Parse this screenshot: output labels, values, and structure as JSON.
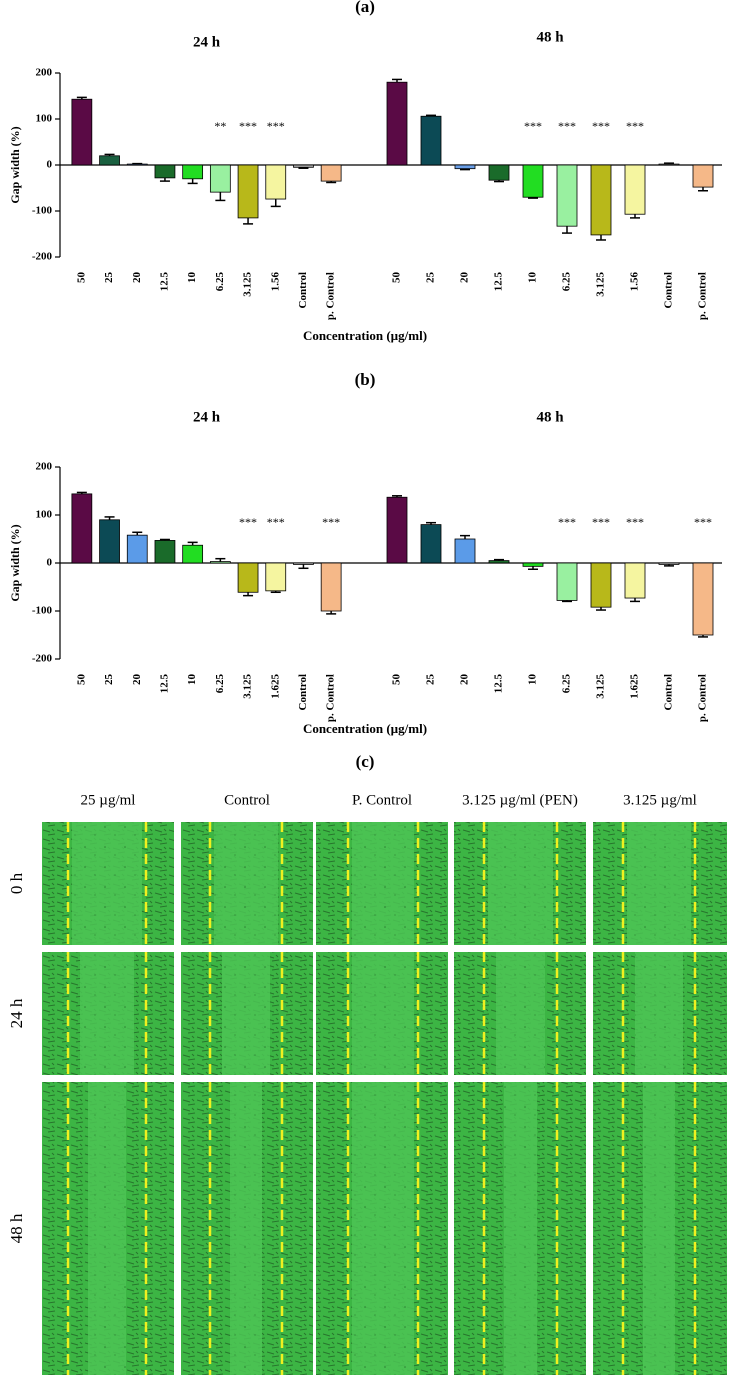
{
  "chart_data": [
    {
      "type": "bar",
      "title": "(a)",
      "ylabel": "Gap width (%)",
      "xlabel": "Concentration (µg/ml)",
      "ylim": [
        -200,
        200
      ],
      "yticks": [
        -200,
        -100,
        0,
        100,
        200
      ],
      "groups": [
        {
          "name": "24 h",
          "categories": [
            "50",
            "25",
            "20",
            "12.5",
            "10",
            "6.25",
            "3.125",
            "1.56",
            "Control",
            "p. Control"
          ],
          "values": [
            143,
            20,
            2,
            -28,
            -30,
            -59,
            -115,
            -74,
            -5,
            -35
          ],
          "errors": [
            4,
            3,
            1,
            7,
            10,
            18,
            13,
            16,
            2,
            3
          ],
          "colors": [
            "#5a0a45",
            "#1a6040",
            "#6a8fd8",
            "#1a6b2a",
            "#22dd22",
            "#99f0a0",
            "#b8b81a",
            "#f5f5a0",
            "#aaaaaa",
            "#f5b888"
          ],
          "annotations": [
            null,
            null,
            null,
            null,
            null,
            "**",
            "***",
            "***",
            null,
            null
          ]
        },
        {
          "name": "48 h",
          "categories": [
            "50",
            "25",
            "20",
            "12.5",
            "10",
            "6.25",
            "3.125",
            "1.56",
            "Control",
            "p. Control"
          ],
          "values": [
            180,
            106,
            -8,
            -33,
            -70,
            -133,
            -152,
            -107,
            2,
            -48
          ],
          "errors": [
            6,
            2,
            2,
            3,
            2,
            15,
            11,
            8,
            2,
            8
          ],
          "colors": [
            "#5a0a45",
            "#0c4a55",
            "#6a9fe8",
            "#1a6b2a",
            "#22dd22",
            "#99f0a0",
            "#b8b81a",
            "#f5f5a0",
            "#aaaaaa",
            "#f5b888"
          ],
          "annotations": [
            null,
            null,
            null,
            null,
            "***",
            "***",
            "***",
            "***",
            null,
            null
          ]
        }
      ]
    },
    {
      "type": "bar",
      "title": "(b)",
      "ylabel": "Gap width (%)",
      "xlabel": "Concentration (µg/ml)",
      "ylim": [
        -200,
        200
      ],
      "yticks": [
        -200,
        -100,
        0,
        100,
        200
      ],
      "groups": [
        {
          "name": "24 h",
          "categories": [
            "50",
            "25",
            "20",
            "12.5",
            "10",
            "6.25",
            "3.125",
            "1.625",
            "Control",
            "p. Control"
          ],
          "values": [
            144,
            90,
            58,
            47,
            37,
            3,
            -61,
            -58,
            -3,
            -100
          ],
          "errors": [
            3,
            6,
            6,
            2,
            6,
            6,
            7,
            3,
            8,
            6
          ],
          "colors": [
            "#5a0a45",
            "#0c4a55",
            "#5b9be8",
            "#1a6b2a",
            "#22dd22",
            "#99f0a0",
            "#b8b81a",
            "#f5f5a0",
            "#cccccc",
            "#f5b888"
          ],
          "annotations": [
            null,
            null,
            null,
            null,
            null,
            null,
            "***",
            "***",
            null,
            "***"
          ]
        },
        {
          "name": "48 h",
          "categories": [
            "50",
            "25",
            "20",
            "12.5",
            "10",
            "6.25",
            "3.125",
            "1.625",
            "Control",
            "p. Control"
          ],
          "values": [
            137,
            80,
            50,
            5,
            -7,
            -78,
            -92,
            -73,
            -3,
            -150
          ],
          "errors": [
            3,
            4,
            7,
            2,
            6,
            2,
            6,
            7,
            3,
            4
          ],
          "colors": [
            "#5a0a45",
            "#0c4a55",
            "#5b9be8",
            "#1a6b2a",
            "#22dd22",
            "#99f0a0",
            "#b8b81a",
            "#f5f5a0",
            "#cccccc",
            "#f5b888"
          ],
          "annotations": [
            null,
            null,
            null,
            null,
            null,
            "***",
            "***",
            "***",
            null,
            "***"
          ]
        }
      ]
    }
  ],
  "micrographs": {
    "title": "(c)",
    "columns": [
      "25 µg/ml",
      "Control",
      "P. Control",
      "3.125 µg/ml (PEN)",
      "3.125 µg/ml"
    ],
    "rows": [
      "0 h",
      "24 h",
      "48 h"
    ]
  }
}
